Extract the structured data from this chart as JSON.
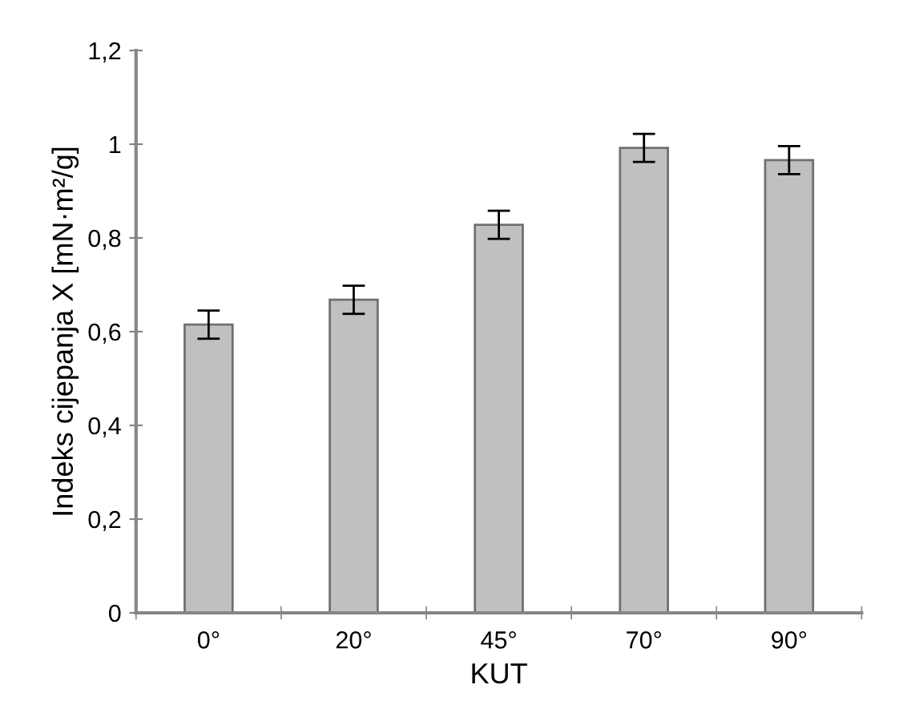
{
  "chart_data": {
    "type": "bar",
    "xlabel": "KUT",
    "ylabel": "Indeks cijepanja X [mN·m²/g]",
    "categories": [
      "0°",
      "20°",
      "45°",
      "70°",
      "90°"
    ],
    "series": [
      {
        "color": "#c0c0c0",
        "values": [
          0.615,
          0.668,
          0.828,
          0.992,
          0.966
        ],
        "errors": [
          0.03,
          0.03,
          0.03,
          0.03,
          0.03
        ]
      }
    ],
    "ylim": [
      0,
      1.2
    ],
    "yticks": [
      0,
      {
        "value": 0.2,
        "label": "0,2"
      },
      {
        "value": 0.4,
        "label": "0,4"
      },
      {
        "value": 0.6,
        "label": "0,6"
      },
      {
        "value": 0.8,
        "label": "0,8"
      },
      1,
      {
        "value": 1.2,
        "label": "1,2"
      }
    ],
    "grid": false
  }
}
